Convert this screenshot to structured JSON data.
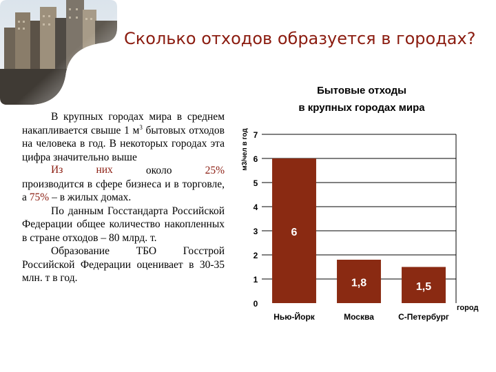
{
  "slide": {
    "title": "Сколько отходов образуется в городах?",
    "paragraphs": {
      "p1": {
        "text_a": "В крупных городах мира в среднем накапливается свыше 1 м",
        "sup": "3",
        "text_b": " бытовых отходов на человека в год. В некоторых городах эта цифра значительно выше"
      },
      "p2": {
        "from": "Из",
        "them": "них",
        "about": "около",
        "pct_business": "25%",
        "text_a": " производится в сфере бизнеса и в торговле, а ",
        "pct_homes": "75%",
        "text_b": " – в жилых домах."
      },
      "p3": "По данным Госстандарта Российской Федерации общее количество накопленных в стране отходов – 80 млрд. т.",
      "p4": "Образование ТБО Госстрой Российской Федерации оценивает в 30-35 млн. т в год."
    }
  },
  "colors": {
    "title": "#8b1c10",
    "highlight": "#8b1c10",
    "bar": "#8a2a12",
    "grid": "#000000"
  },
  "icons": {
    "photo": "city-skyline-photo"
  },
  "chart_data": {
    "type": "bar",
    "title": "Бытовые отходы в крупных городах мира",
    "ylabel": "м3/чел в год",
    "xlabel": "город",
    "categories": [
      "Нью-Йорк",
      "Москва",
      "С-Петербург"
    ],
    "values": [
      6,
      1.8,
      1.5
    ],
    "value_labels": [
      "6",
      "1,8",
      "1,5"
    ],
    "yticks": [
      "0",
      "1",
      "2",
      "3",
      "4",
      "5",
      "6",
      "7"
    ],
    "ylim": [
      0,
      7
    ],
    "grid": true
  }
}
